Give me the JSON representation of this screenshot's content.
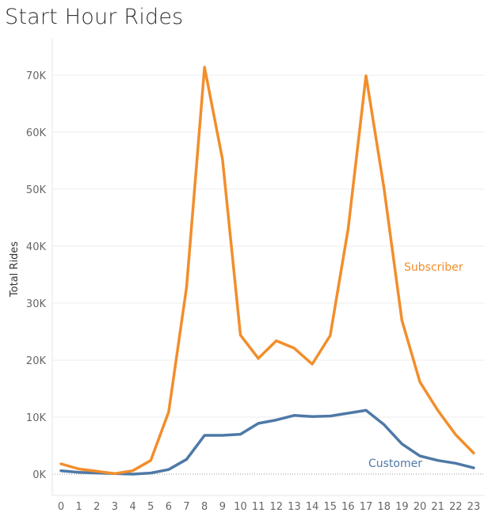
{
  "chart_data": {
    "type": "line",
    "title": "Start Hour Rides",
    "xlabel": "",
    "ylabel": "Total Rides",
    "categories": [
      "0",
      "1",
      "2",
      "3",
      "4",
      "5",
      "6",
      "7",
      "8",
      "9",
      "10",
      "11",
      "12",
      "13",
      "14",
      "15",
      "16",
      "17",
      "18",
      "19",
      "20",
      "21",
      "22",
      "23"
    ],
    "y_ticks": [
      "0K",
      "10K",
      "20K",
      "30K",
      "40K",
      "50K",
      "60K",
      "70K"
    ],
    "ylim": [
      0,
      75000
    ],
    "grid": true,
    "series": [
      {
        "name": "Subscriber",
        "color": "#f28e2b",
        "values": [
          1800,
          900,
          500,
          100,
          600,
          2400,
          10900,
          32800,
          71400,
          55200,
          24400,
          20300,
          23400,
          22100,
          19300,
          24300,
          43000,
          69900,
          50200,
          27000,
          16200,
          11200,
          6900,
          3700
        ]
      },
      {
        "name": "Customer",
        "color": "#4e79a7",
        "values": [
          600,
          300,
          200,
          100,
          0,
          200,
          800,
          2600,
          6800,
          6800,
          7000,
          8900,
          9500,
          10300,
          10100,
          10200,
          10700,
          11200,
          8700,
          5300,
          3200,
          2400,
          1900,
          1100
        ]
      }
    ]
  }
}
